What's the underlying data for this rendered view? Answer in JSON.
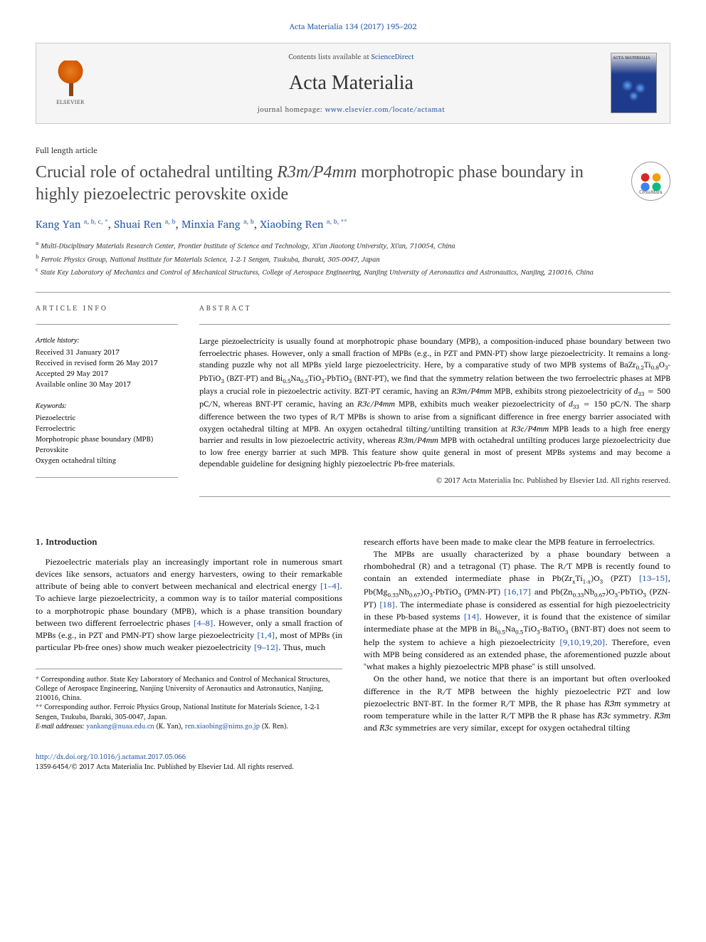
{
  "citation": "Acta Materialia 134 (2017) 195–202",
  "banner": {
    "contents_prefix": "Contents lists available at ",
    "contents_link": "ScienceDirect",
    "journal_name": "Acta Materialia",
    "homepage_prefix": "journal homepage: ",
    "homepage_url": "www.elsevier.com/locate/actamat",
    "elsevier_label": "ELSEVIER",
    "cover_label": "ACTA MATERIALIA"
  },
  "article_type": "Full length article",
  "title_parts": {
    "p1": "Crucial role of octahedral untilting ",
    "p2": "R3m/P4mm",
    "p3": " morphotropic phase boundary in highly piezoelectric perovskite oxide"
  },
  "crossmark_label": "CrossMark",
  "authors": [
    {
      "name": "Kang Yan",
      "aff": "a, b, c, *"
    },
    {
      "name": "Shuai Ren",
      "aff": "a, b"
    },
    {
      "name": "Minxia Fang",
      "aff": "a, b"
    },
    {
      "name": "Xiaobing Ren",
      "aff": "a, b, **"
    }
  ],
  "affiliations": {
    "a": "Multi-Disciplinary Materials Research Center, Frontier Institute of Science and Technology, Xi'an Jiaotong University, Xi'an, 710054, China",
    "b": "Ferroic Physics Group, National Institute for Materials Science, 1-2-1 Sengen, Tsukuba, Ibaraki, 305-0047, Japan",
    "c": "State Key Laboratory of Mechanics and Control of Mechanical Structures, College of Aerospace Engineering, Nanjing University of Aeronautics and Astronautics, Nanjing, 210016, China"
  },
  "info": {
    "header": "ARTICLE INFO",
    "history_label": "Article history:",
    "received": "Received 31 January 2017",
    "revised": "Received in revised form 26 May 2017",
    "accepted": "Accepted 29 May 2017",
    "online": "Available online 30 May 2017",
    "keywords_label": "Keywords:",
    "keywords": [
      "Piezoelectric",
      "Ferroelectric",
      "Morphotropic phase boundary (MPB)",
      "Perovskite",
      "Oxygen octahedral tilting"
    ]
  },
  "abstract": {
    "header": "ABSTRACT",
    "copyright": "© 2017 Acta Materialia Inc. Published by Elsevier Ltd. All rights reserved."
  },
  "section1": {
    "heading": "1. Introduction"
  },
  "footnotes": {
    "f1": "* Corresponding author. State Key Laboratory of Mechanics and Control of Mechanical Structures, College of Aerospace Engineering, Nanjing University of Aeronautics and Astronautics, Nanjing, 210016, China.",
    "f2": "** Corresponding author. Ferroic Physics Group, National Institute for Materials Science, 1-2-1 Sengen, Tsukuba, Ibaraki, 305-0047, Japan.",
    "email_label": "E-mail addresses:",
    "email1": "yankang@nuaa.edu.cn",
    "email1_who": "(K. Yan),",
    "email2": "ren.xiaobing@nims.go.jp",
    "email2_who": "(X. Ren)."
  },
  "footer": {
    "doi": "http://dx.doi.org/10.1016/j.actamat.2017.05.066",
    "issn_line": "1359-6454/© 2017 Acta Materialia Inc. Published by Elsevier Ltd. All rights reserved."
  },
  "colors": {
    "link": "#2a5caa",
    "text": "#1a1a1a",
    "muted": "#555555",
    "border": "#999999",
    "banner_bg": "#f5f5f5"
  }
}
